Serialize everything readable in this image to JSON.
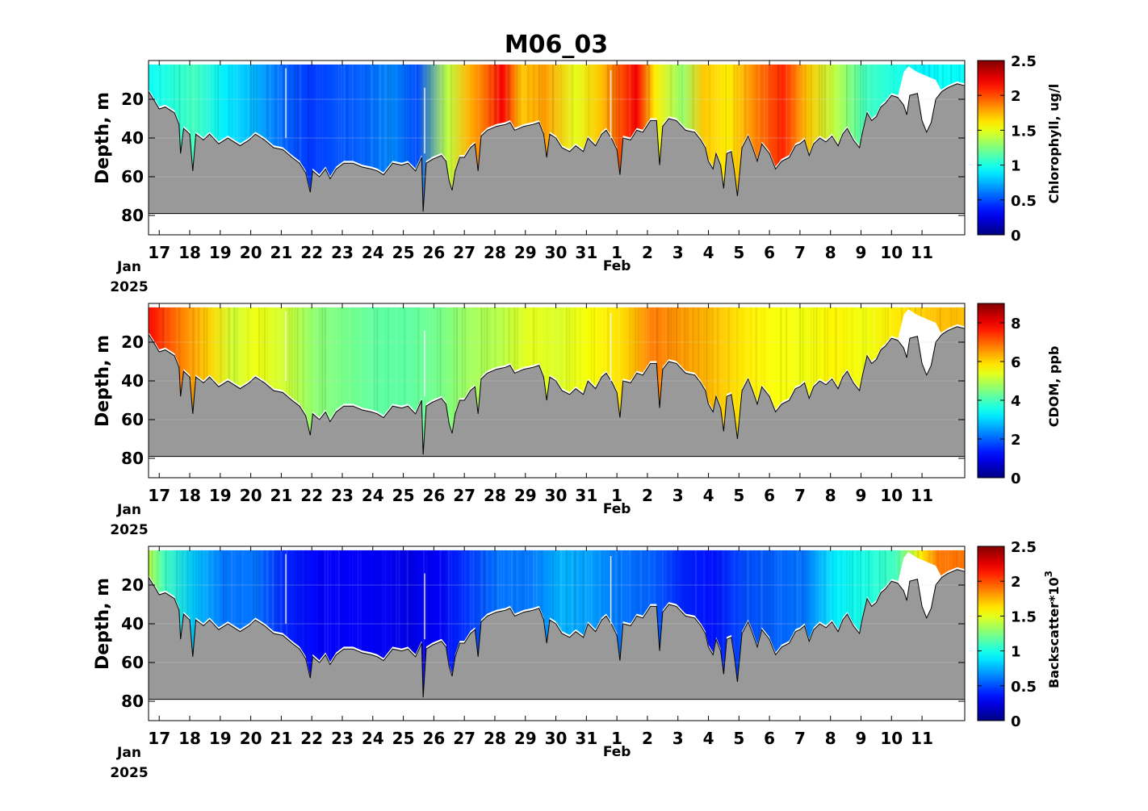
{
  "figure_title": "M06_03",
  "colors": {
    "seafloor": "#999999",
    "grid": "#d9d9d9",
    "gap": "#ffffff"
  },
  "chart_data": [
    {
      "type": "heatmap",
      "title": "M06_03",
      "ylabel": "Depth, m",
      "colorbar_label": "Chlorophyll, ug/l",
      "colormap": "jet",
      "clim": [
        0,
        2.5
      ],
      "colorbar_ticks": [
        "0",
        "0.5",
        "1",
        "1.5",
        "2",
        "2.5"
      ],
      "ylim": [
        0,
        90
      ],
      "y_ticks": [
        "20",
        "40",
        "60",
        "80"
      ],
      "x_ticks": [
        "17",
        "18",
        "19",
        "20",
        "21",
        "22",
        "23",
        "24",
        "25",
        "26",
        "27",
        "28",
        "29",
        "30",
        "31",
        "1",
        "2",
        "3",
        "4",
        "5",
        "6",
        "7",
        "8",
        "9",
        "10",
        "11"
      ],
      "month_labels": [
        {
          "text": "Jan",
          "year": "2025"
        },
        {
          "text": "Feb"
        }
      ],
      "data_min_depth": 2,
      "seafloor_shaded_to": 79,
      "profile": [
        [
          0.0,
          0.95
        ],
        [
          1.5,
          1.1
        ],
        [
          2.5,
          0.9
        ],
        [
          3.5,
          0.75
        ],
        [
          4.5,
          0.55
        ],
        [
          5.3,
          0.45
        ],
        [
          6.0,
          0.5
        ],
        [
          7.0,
          0.55
        ],
        [
          8.0,
          0.65
        ],
        [
          8.8,
          0.5
        ],
        [
          9.8,
          1.4
        ],
        [
          10.5,
          1.75
        ],
        [
          11.0,
          1.9
        ],
        [
          11.6,
          2.2
        ],
        [
          12.2,
          1.7
        ],
        [
          13.0,
          1.8
        ],
        [
          14.0,
          1.5
        ],
        [
          14.8,
          1.7
        ],
        [
          15.5,
          2.0
        ],
        [
          16.0,
          2.2
        ],
        [
          16.6,
          1.6
        ],
        [
          17.5,
          1.3
        ],
        [
          18.2,
          1.7
        ],
        [
          19.0,
          1.6
        ],
        [
          20.0,
          1.9
        ],
        [
          20.8,
          2.1
        ],
        [
          21.6,
          1.7
        ],
        [
          22.5,
          1.4
        ],
        [
          23.5,
          1.1
        ],
        [
          24.5,
          1.0
        ],
        [
          25.5,
          0.9
        ],
        [
          25.9,
          0.95
        ]
      ]
    },
    {
      "type": "heatmap",
      "ylabel": "Depth, m",
      "colorbar_label": "CDOM, ppb",
      "colormap": "jet",
      "clim": [
        0,
        9
      ],
      "colorbar_ticks": [
        "0",
        "2",
        "4",
        "6",
        "8"
      ],
      "ylim": [
        0,
        90
      ],
      "y_ticks": [
        "20",
        "40",
        "60",
        "80"
      ],
      "x_ticks": [
        "17",
        "18",
        "19",
        "20",
        "21",
        "22",
        "23",
        "24",
        "25",
        "26",
        "27",
        "28",
        "29",
        "30",
        "31",
        "1",
        "2",
        "3",
        "4",
        "5",
        "6",
        "7",
        "8",
        "9",
        "10",
        "11"
      ],
      "month_labels": [
        {
          "text": "Jan",
          "year": "2025"
        },
        {
          "text": "Feb"
        }
      ],
      "data_min_depth": 2,
      "seafloor_shaded_to": 79,
      "profile": [
        [
          0.0,
          7.8
        ],
        [
          1.0,
          6.8
        ],
        [
          2.0,
          6.0
        ],
        [
          2.8,
          5.2
        ],
        [
          3.5,
          5.5
        ],
        [
          4.5,
          5.2
        ],
        [
          5.5,
          4.6
        ],
        [
          6.5,
          4.4
        ],
        [
          7.5,
          4.2
        ],
        [
          8.5,
          4.2
        ],
        [
          9.5,
          4.4
        ],
        [
          10.5,
          4.8
        ],
        [
          11.5,
          5.0
        ],
        [
          12.5,
          5.4
        ],
        [
          13.5,
          5.3
        ],
        [
          14.5,
          5.6
        ],
        [
          15.5,
          5.9
        ],
        [
          16.0,
          6.3
        ],
        [
          16.5,
          6.8
        ],
        [
          17.5,
          6.5
        ],
        [
          18.5,
          6.2
        ],
        [
          19.5,
          5.8
        ],
        [
          20.5,
          5.6
        ],
        [
          21.5,
          5.5
        ],
        [
          22.5,
          5.7
        ],
        [
          23.5,
          5.5
        ],
        [
          24.5,
          5.8
        ],
        [
          25.9,
          6.2
        ]
      ]
    },
    {
      "type": "heatmap",
      "ylabel": "Depth, m",
      "colorbar_label": "Backscatter*10",
      "colorbar_label_sup": "3",
      "colormap": "jet",
      "clim": [
        0,
        2.5
      ],
      "colorbar_ticks": [
        "0",
        "0.5",
        "1",
        "1.5",
        "2",
        "2.5"
      ],
      "ylim": [
        0,
        90
      ],
      "y_ticks": [
        "20",
        "40",
        "60",
        "80"
      ],
      "x_ticks": [
        "17",
        "18",
        "19",
        "20",
        "21",
        "22",
        "23",
        "24",
        "25",
        "26",
        "27",
        "28",
        "29",
        "30",
        "31",
        "1",
        "2",
        "3",
        "4",
        "5",
        "6",
        "7",
        "8",
        "9",
        "10",
        "11"
      ],
      "month_labels": [
        {
          "text": "Jan",
          "year": "2025"
        },
        {
          "text": "Feb"
        }
      ],
      "data_min_depth": 2,
      "seafloor_shaded_to": 79,
      "profile": [
        [
          0.0,
          1.4
        ],
        [
          0.5,
          1.1
        ],
        [
          1.5,
          0.8
        ],
        [
          2.5,
          0.6
        ],
        [
          3.5,
          0.6
        ],
        [
          4.5,
          0.4
        ],
        [
          5.5,
          0.3
        ],
        [
          6.5,
          0.3
        ],
        [
          7.5,
          0.3
        ],
        [
          8.5,
          0.25
        ],
        [
          9.5,
          0.3
        ],
        [
          10.5,
          0.45
        ],
        [
          11.5,
          0.6
        ],
        [
          12.5,
          0.6
        ],
        [
          13.5,
          0.75
        ],
        [
          14.5,
          0.7
        ],
        [
          15.5,
          0.6
        ],
        [
          16.5,
          0.55
        ],
        [
          17.5,
          0.4
        ],
        [
          18.5,
          0.35
        ],
        [
          19.5,
          0.5
        ],
        [
          20.5,
          0.55
        ],
        [
          21.5,
          0.6
        ],
        [
          22.5,
          0.9
        ],
        [
          23.5,
          1.0
        ],
        [
          24.5,
          1.1
        ],
        [
          25.3,
          1.6
        ],
        [
          25.9,
          1.9
        ]
      ]
    }
  ],
  "bathymetry": [
    [
      0.0,
      16
    ],
    [
      0.2,
      21
    ],
    [
      0.35,
      25
    ],
    [
      0.55,
      24
    ],
    [
      0.85,
      27
    ],
    [
      1.0,
      33
    ],
    [
      1.05,
      48
    ],
    [
      1.15,
      35
    ],
    [
      1.35,
      38
    ],
    [
      1.45,
      57
    ],
    [
      1.55,
      38
    ],
    [
      1.8,
      41
    ],
    [
      2.0,
      38
    ],
    [
      2.3,
      43
    ],
    [
      2.6,
      40
    ],
    [
      3.0,
      44
    ],
    [
      3.3,
      41
    ],
    [
      3.5,
      38
    ],
    [
      3.8,
      41
    ],
    [
      4.1,
      45
    ],
    [
      4.4,
      46
    ],
    [
      4.7,
      50
    ],
    [
      4.95,
      53
    ],
    [
      5.15,
      58
    ],
    [
      5.3,
      68
    ],
    [
      5.38,
      57
    ],
    [
      5.6,
      60
    ],
    [
      5.8,
      56
    ],
    [
      5.95,
      61
    ],
    [
      6.15,
      56
    ],
    [
      6.4,
      53
    ],
    [
      6.7,
      53
    ],
    [
      7.0,
      55
    ],
    [
      7.3,
      56
    ],
    [
      7.5,
      57
    ],
    [
      7.7,
      59
    ],
    [
      7.85,
      56
    ],
    [
      8.0,
      53
    ],
    [
      8.3,
      54
    ],
    [
      8.5,
      53
    ],
    [
      8.75,
      57
    ],
    [
      8.95,
      50
    ],
    [
      9.0,
      78
    ],
    [
      9.1,
      53
    ],
    [
      9.3,
      51
    ],
    [
      9.6,
      49
    ],
    [
      9.75,
      52
    ],
    [
      9.85,
      62
    ],
    [
      9.95,
      67
    ],
    [
      10.05,
      57
    ],
    [
      10.2,
      50
    ],
    [
      10.35,
      50
    ],
    [
      10.55,
      45
    ],
    [
      10.7,
      43
    ],
    [
      10.8,
      57
    ],
    [
      10.9,
      39
    ],
    [
      11.1,
      36
    ],
    [
      11.4,
      34
    ],
    [
      11.7,
      33
    ],
    [
      11.85,
      32
    ],
    [
      12.0,
      36
    ],
    [
      12.3,
      34
    ],
    [
      12.6,
      33
    ],
    [
      12.8,
      32
    ],
    [
      12.95,
      38
    ],
    [
      13.05,
      50
    ],
    [
      13.15,
      38
    ],
    [
      13.35,
      40
    ],
    [
      13.55,
      45
    ],
    [
      13.8,
      47
    ],
    [
      14.0,
      44
    ],
    [
      14.25,
      47
    ],
    [
      14.4,
      40
    ],
    [
      14.65,
      44
    ],
    [
      14.85,
      38
    ],
    [
      15.0,
      36
    ],
    [
      15.2,
      41
    ],
    [
      15.35,
      46
    ],
    [
      15.45,
      59
    ],
    [
      15.55,
      40
    ],
    [
      15.8,
      41
    ],
    [
      16.0,
      36
    ],
    [
      16.2,
      37
    ],
    [
      16.45,
      31
    ],
    [
      16.65,
      31
    ],
    [
      16.75,
      54
    ],
    [
      16.85,
      34
    ],
    [
      17.05,
      30
    ],
    [
      17.3,
      31
    ],
    [
      17.6,
      36
    ],
    [
      17.9,
      37
    ],
    [
      18.1,
      41
    ],
    [
      18.25,
      45
    ],
    [
      18.35,
      52
    ],
    [
      18.5,
      56
    ],
    [
      18.6,
      48
    ],
    [
      18.75,
      54
    ],
    [
      18.85,
      66
    ],
    [
      18.95,
      48
    ],
    [
      19.1,
      47
    ],
    [
      19.2,
      57
    ],
    [
      19.3,
      70
    ],
    [
      19.45,
      45
    ],
    [
      19.65,
      39
    ],
    [
      19.8,
      45
    ],
    [
      19.95,
      52
    ],
    [
      20.1,
      43
    ],
    [
      20.35,
      48
    ],
    [
      20.55,
      56
    ],
    [
      20.75,
      52
    ],
    [
      21.0,
      50
    ],
    [
      21.2,
      44
    ],
    [
      21.35,
      43
    ],
    [
      21.5,
      41
    ],
    [
      21.65,
      49
    ],
    [
      21.8,
      43
    ],
    [
      22.0,
      40
    ],
    [
      22.2,
      42
    ],
    [
      22.4,
      39
    ],
    [
      22.6,
      44
    ],
    [
      22.75,
      38
    ],
    [
      22.9,
      35
    ],
    [
      23.1,
      41
    ],
    [
      23.3,
      45
    ],
    [
      23.4,
      37
    ],
    [
      23.55,
      27
    ],
    [
      23.7,
      31
    ],
    [
      23.85,
      29
    ],
    [
      24.0,
      24
    ],
    [
      24.15,
      22
    ],
    [
      24.35,
      18
    ],
    [
      24.55,
      19
    ],
    [
      24.75,
      23
    ],
    [
      24.85,
      28
    ],
    [
      24.95,
      18
    ],
    [
      25.2,
      17
    ],
    [
      25.35,
      31
    ],
    [
      25.5,
      37
    ],
    [
      25.65,
      32
    ],
    [
      25.8,
      20
    ],
    [
      26.0,
      16
    ],
    [
      26.2,
      14
    ],
    [
      26.5,
      12
    ],
    [
      26.75,
      13
    ]
  ],
  "shallow_gaps": [
    [
      [
        24.55,
        19
      ],
      [
        24.75,
        6
      ],
      [
        24.9,
        3
      ],
      [
        25.2,
        6
      ],
      [
        25.5,
        8
      ],
      [
        25.8,
        10
      ],
      [
        26.0,
        16
      ],
      [
        25.8,
        20
      ],
      [
        25.65,
        32
      ],
      [
        25.5,
        37
      ],
      [
        25.35,
        31
      ],
      [
        25.2,
        17
      ],
      [
        24.95,
        18
      ],
      [
        24.85,
        28
      ],
      [
        24.75,
        23
      ]
    ]
  ],
  "data_gaps": [
    {
      "x": 9.05,
      "top": 14,
      "bottom": 48
    },
    {
      "x": 4.5,
      "top": 4,
      "bottom": 40
    },
    {
      "x": 15.15,
      "top": 5,
      "bottom": 40
    }
  ]
}
